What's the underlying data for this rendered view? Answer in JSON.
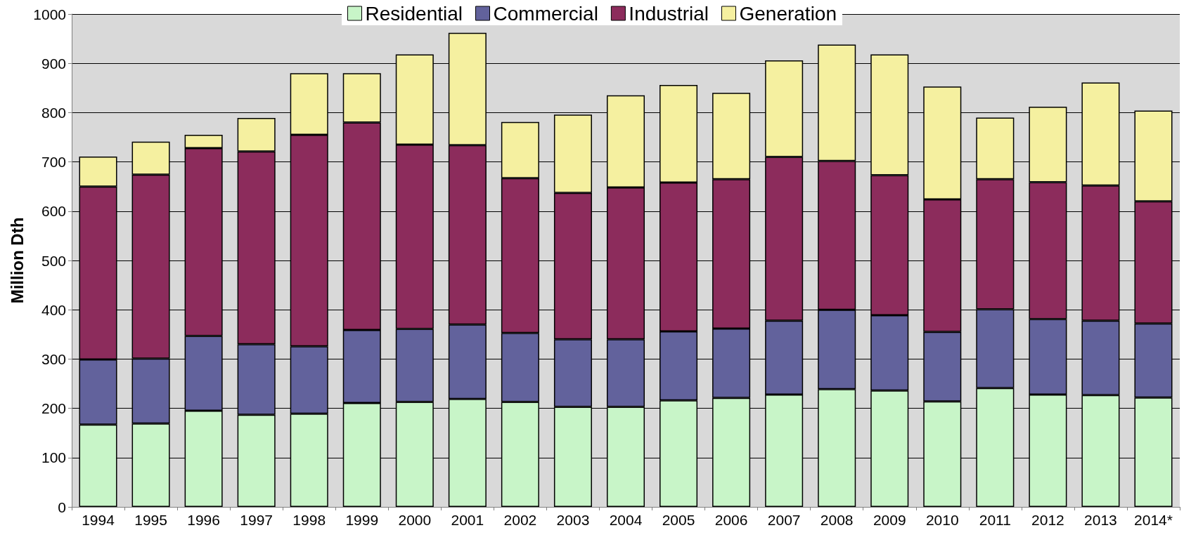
{
  "chart_data": {
    "type": "bar",
    "stacked": true,
    "ylabel": "Million Dth",
    "categories": [
      "1994",
      "1995",
      "1996",
      "1997",
      "1998",
      "1999",
      "2000",
      "2001",
      "2002",
      "2003",
      "2004",
      "2005",
      "2006",
      "2007",
      "2008",
      "2009",
      "2010",
      "2011",
      "2012",
      "2013",
      "2014*"
    ],
    "series": [
      {
        "name": "Residential",
        "color": "#c8f5c8",
        "values": [
          167,
          169,
          195,
          187,
          189,
          211,
          213,
          219,
          213,
          203,
          203,
          216,
          221,
          228,
          239,
          236,
          214,
          241,
          228,
          227,
          222
        ]
      },
      {
        "name": "Commercial",
        "color": "#62629c",
        "values": [
          132,
          132,
          152,
          143,
          137,
          148,
          148,
          151,
          140,
          137,
          137,
          140,
          141,
          150,
          161,
          153,
          141,
          160,
          153,
          151,
          150
        ]
      },
      {
        "name": "Industrial",
        "color": "#8c2c5c",
        "values": [
          351,
          373,
          381,
          391,
          429,
          421,
          374,
          364,
          314,
          297,
          308,
          302,
          303,
          332,
          302,
          284,
          269,
          264,
          278,
          274,
          248
        ]
      },
      {
        "name": "Generation",
        "color": "#f5f0a0",
        "values": [
          61,
          67,
          27,
          68,
          125,
          100,
          183,
          228,
          114,
          159,
          187,
          198,
          175,
          196,
          236,
          245,
          229,
          125,
          153,
          209,
          184
        ]
      }
    ],
    "ylim": [
      0,
      1000
    ],
    "yticks": [
      0,
      100,
      200,
      300,
      400,
      500,
      600,
      700,
      800,
      900,
      1000
    ],
    "grid": "y",
    "legend": "top"
  }
}
